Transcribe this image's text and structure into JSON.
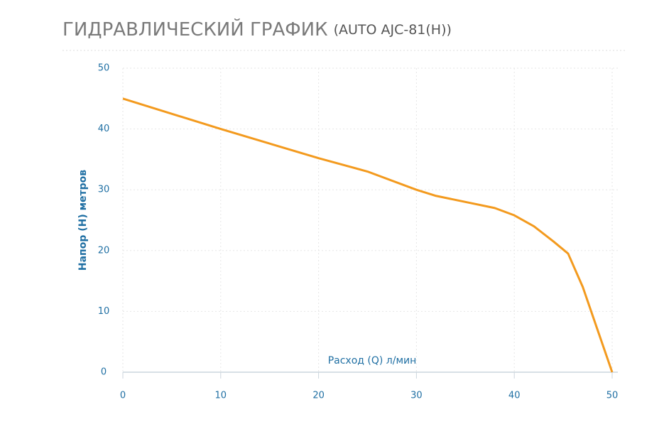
{
  "chart_data": {
    "type": "line",
    "title": "ГИДРАВЛИЧЕСКИЙ ГРАФИК",
    "subtitle": "(AUTO AJC-81(H))",
    "x_label": "Расход (Q) л/мин",
    "y_label": "Напор (Н) метров",
    "x": [
      0,
      10,
      20,
      25,
      30,
      32,
      35,
      38,
      40,
      42,
      44,
      45.5,
      47,
      48.5,
      50
    ],
    "series": [
      {
        "color": "#f39a1e",
        "values": [
          45,
          40,
          35.2,
          33,
          30,
          29,
          28,
          27,
          25.8,
          24,
          21.5,
          19.5,
          14,
          7,
          0
        ]
      }
    ],
    "xlim": [
      0,
      50
    ],
    "xticks": [
      0,
      10,
      20,
      30,
      40,
      50
    ],
    "ylim": [
      0,
      50
    ],
    "yticks": [
      0,
      10,
      20,
      30,
      40,
      50
    ],
    "grid": true
  }
}
